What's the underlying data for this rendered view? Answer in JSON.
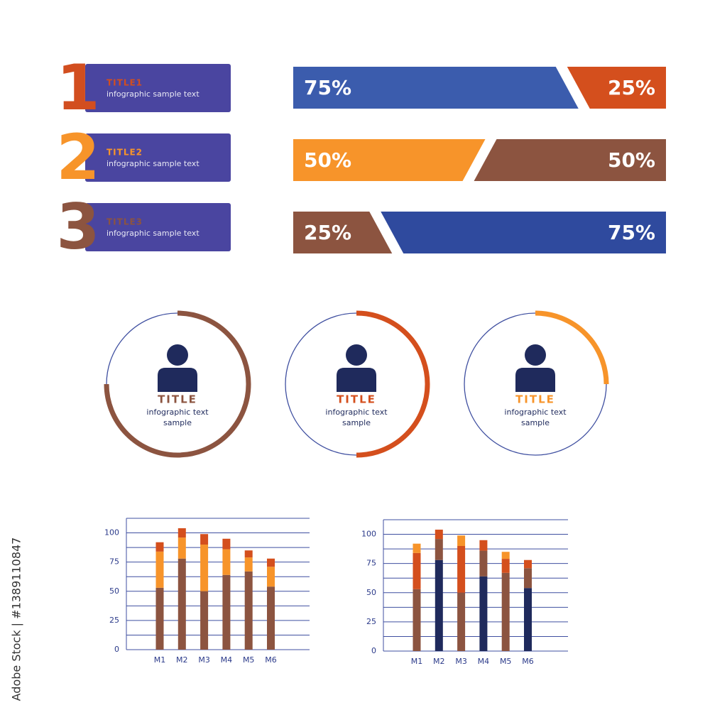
{
  "watermark": "Adobe Stock | #1389110847",
  "title_cards": [
    {
      "number": "1",
      "title": "TITLE1",
      "text": "infographic sample text",
      "color": "#d24e1f"
    },
    {
      "number": "2",
      "title": "TITLE2",
      "text": "infographic sample text",
      "color": "#f7942a"
    },
    {
      "number": "3",
      "title": "TITLE3",
      "text": "infographic sample text",
      "color": "#8c5440"
    }
  ],
  "split_bars": [
    {
      "values": [
        75,
        25
      ],
      "value_labels": [
        "75%",
        "25%"
      ],
      "colors": [
        "#3b5cad",
        "#d44f1d"
      ]
    },
    {
      "values": [
        50,
        50
      ],
      "value_labels": [
        "50%",
        "50%"
      ],
      "colors": [
        "#f7942a",
        "#8c5440"
      ]
    },
    {
      "values": [
        25,
        75
      ],
      "value_labels": [
        "25%",
        "75%"
      ],
      "colors": [
        "#8c5440",
        "#2f4a9e"
      ]
    }
  ],
  "profiles": [
    {
      "title": "TITLE",
      "text_lines": [
        "infographic text",
        "sample"
      ],
      "progress": 75,
      "color": "#8c5440"
    },
    {
      "title": "TITLE",
      "text_lines": [
        "infographic text",
        "sample"
      ],
      "progress": 50,
      "color": "#d44f1d"
    },
    {
      "title": "TITLE",
      "text_lines": [
        "infographic text",
        "sample"
      ],
      "progress": 25,
      "color": "#f7942a"
    }
  ],
  "chart_data": [
    {
      "type": "bar",
      "stacked": true,
      "categories": [
        "M1",
        "M2",
        "M3",
        "M4",
        "M5",
        "M6"
      ],
      "series": [
        {
          "color": "#8c5440",
          "values": [
            53,
            78,
            50,
            64,
            67,
            54
          ]
        },
        {
          "color": "#f7942a",
          "values": [
            31,
            18,
            40,
            22,
            12,
            17
          ]
        },
        {
          "color": "#d44f1d",
          "values": [
            8,
            8,
            9,
            9,
            6,
            7
          ]
        }
      ],
      "ylim": [
        0,
        112.5
      ],
      "yticks": [
        0,
        25,
        50,
        75,
        100
      ],
      "minor_yticks": [
        12.5,
        37.5,
        62.5,
        87.5,
        112.5
      ],
      "grid": true
    },
    {
      "type": "bar",
      "stacked": true,
      "categories": [
        "M1",
        "M2",
        "M3",
        "M4",
        "M5",
        "M6"
      ],
      "series": [
        {
          "colors": [
            "#8c5440",
            "#1f2a5c",
            "#8c5440",
            "#1f2a5c",
            "#8c5440",
            "#1f2a5c"
          ],
          "values": [
            53,
            78,
            50,
            64,
            67,
            54
          ]
        },
        {
          "colors": [
            "#d44f1d",
            "#8c5440",
            "#d44f1d",
            "#8c5440",
            "#d44f1d",
            "#8c5440"
          ],
          "values": [
            31,
            18,
            40,
            22,
            12,
            17
          ]
        },
        {
          "colors": [
            "#f7942a",
            "#d44f1d",
            "#f7942a",
            "#d44f1d",
            "#f7942a",
            "#d44f1d"
          ],
          "values": [
            8,
            8,
            9,
            9,
            6,
            7
          ]
        }
      ],
      "ylim": [
        0,
        112.5
      ],
      "yticks": [
        0,
        25,
        50,
        75,
        100
      ],
      "minor_yticks": [
        12.5,
        37.5,
        62.5,
        87.5,
        112.5
      ],
      "grid": true
    }
  ]
}
